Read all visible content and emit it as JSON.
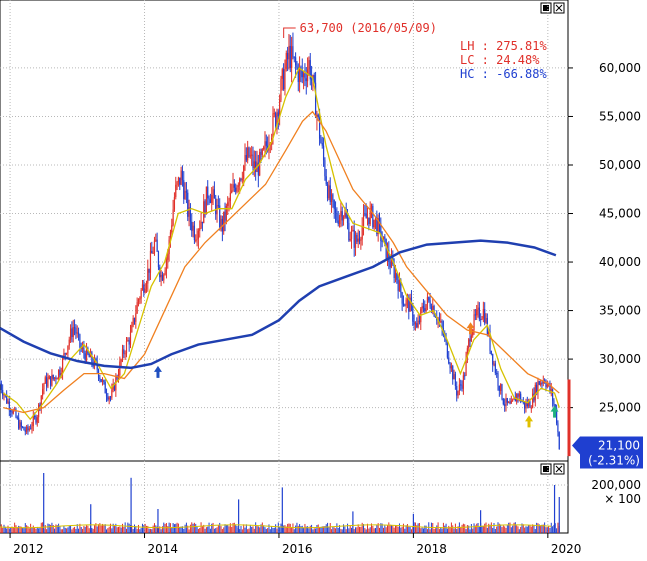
{
  "chart_data": [
    {
      "type": "candlestick",
      "panel": "price",
      "x_tick_labels": [
        "2012",
        "2014",
        "2016",
        "2018",
        "2020"
      ],
      "x_ticks": [
        2012.0,
        2014.0,
        2016.0,
        2018.0,
        2020.0
      ],
      "xlim": [
        2011.85,
        2020.3
      ],
      "ylim": [
        19500,
        67000
      ],
      "y_ticks": [
        25000,
        30000,
        35000,
        40000,
        45000,
        50000,
        55000,
        60000
      ],
      "y_tick_labels": [
        "25,000",
        "30,000",
        "35,000",
        "40,000",
        "45,000",
        "50,000",
        "55,000",
        "60,000"
      ],
      "grid": true,
      "price_path": [
        [
          2011.85,
          27500
        ],
        [
          2011.95,
          25800
        ],
        [
          2012.05,
          24500
        ],
        [
          2012.15,
          23000
        ],
        [
          2012.25,
          22500
        ],
        [
          2012.4,
          24200
        ],
        [
          2012.5,
          27500
        ],
        [
          2012.65,
          28000
        ],
        [
          2012.75,
          29000
        ],
        [
          2012.85,
          31500
        ],
        [
          2012.95,
          33500
        ],
        [
          2013.05,
          31000
        ],
        [
          2013.2,
          30000
        ],
        [
          2013.3,
          29000
        ],
        [
          2013.4,
          27000
        ],
        [
          2013.5,
          26000
        ],
        [
          2013.6,
          28500
        ],
        [
          2013.7,
          31000
        ],
        [
          2013.8,
          32500
        ],
        [
          2013.9,
          36000
        ],
        [
          2014.05,
          39000
        ],
        [
          2014.15,
          42000
        ],
        [
          2014.25,
          38500
        ],
        [
          2014.35,
          41000
        ],
        [
          2014.45,
          47000
        ],
        [
          2014.55,
          49000
        ],
        [
          2014.65,
          45000
        ],
        [
          2014.75,
          43000
        ],
        [
          2014.85,
          44500
        ],
        [
          2014.95,
          47500
        ],
        [
          2015.05,
          46000
        ],
        [
          2015.15,
          43500
        ],
        [
          2015.25,
          46000
        ],
        [
          2015.35,
          48000
        ],
        [
          2015.45,
          49500
        ],
        [
          2015.55,
          51000
        ],
        [
          2015.65,
          49500
        ],
        [
          2015.75,
          50500
        ],
        [
          2015.85,
          53000
        ],
        [
          2015.95,
          55000
        ],
        [
          2016.05,
          58500
        ],
        [
          2016.15,
          61500
        ],
        [
          2016.25,
          60000
        ],
        [
          2016.35,
          59000
        ],
        [
          2016.45,
          60500
        ],
        [
          2016.55,
          56000
        ],
        [
          2016.65,
          51000
        ],
        [
          2016.75,
          46500
        ],
        [
          2016.85,
          44500
        ],
        [
          2016.95,
          45500
        ],
        [
          2017.05,
          43000
        ],
        [
          2017.15,
          42000
        ],
        [
          2017.25,
          44000
        ],
        [
          2017.35,
          45000
        ],
        [
          2017.45,
          44000
        ],
        [
          2017.55,
          42000
        ],
        [
          2017.65,
          40000
        ],
        [
          2017.75,
          38500
        ],
        [
          2017.85,
          36000
        ],
        [
          2017.95,
          35500
        ],
        [
          2018.05,
          33000
        ],
        [
          2018.15,
          35500
        ],
        [
          2018.25,
          36000
        ],
        [
          2018.35,
          34500
        ],
        [
          2018.45,
          32500
        ],
        [
          2018.55,
          29500
        ],
        [
          2018.65,
          26500
        ],
        [
          2018.75,
          28000
        ],
        [
          2018.85,
          33000
        ],
        [
          2018.95,
          34500
        ],
        [
          2019.05,
          35000
        ],
        [
          2019.15,
          31000
        ],
        [
          2019.25,
          28000
        ],
        [
          2019.35,
          25500
        ],
        [
          2019.45,
          25000
        ],
        [
          2019.55,
          26500
        ],
        [
          2019.65,
          25200
        ],
        [
          2019.75,
          25500
        ],
        [
          2019.85,
          27500
        ],
        [
          2019.95,
          28000
        ],
        [
          2020.05,
          26500
        ],
        [
          2020.12,
          24500
        ],
        [
          2020.17,
          21100
        ]
      ],
      "moving_averages": [
        {
          "color": "#d6c200",
          "values": [
            [
              2011.9,
              26500
            ],
            [
              2012.1,
              25500
            ],
            [
              2012.3,
              23800
            ],
            [
              2012.5,
              25500
            ],
            [
              2012.7,
              27500
            ],
            [
              2012.9,
              30000
            ],
            [
              2013.1,
              31500
            ],
            [
              2013.3,
              29500
            ],
            [
              2013.5,
              27000
            ],
            [
              2013.7,
              28500
            ],
            [
              2013.9,
              33000
            ],
            [
              2014.1,
              37500
            ],
            [
              2014.3,
              40000
            ],
            [
              2014.5,
              45000
            ],
            [
              2014.7,
              45500
            ],
            [
              2014.9,
              45000
            ],
            [
              2015.1,
              45500
            ],
            [
              2015.3,
              45500
            ],
            [
              2015.5,
              48500
            ],
            [
              2015.7,
              50000
            ],
            [
              2015.9,
              52500
            ],
            [
              2016.1,
              57000
            ],
            [
              2016.3,
              60000
            ],
            [
              2016.5,
              59000
            ],
            [
              2016.7,
              52000
            ],
            [
              2016.9,
              46500
            ],
            [
              2017.1,
              44000
            ],
            [
              2017.3,
              43500
            ],
            [
              2017.5,
              43000
            ],
            [
              2017.7,
              40000
            ],
            [
              2017.9,
              36500
            ],
            [
              2018.1,
              34500
            ],
            [
              2018.3,
              35000
            ],
            [
              2018.5,
              32000
            ],
            [
              2018.7,
              28500
            ],
            [
              2018.9,
              32000
            ],
            [
              2019.1,
              33500
            ],
            [
              2019.3,
              29000
            ],
            [
              2019.5,
              26000
            ],
            [
              2019.7,
              25500
            ],
            [
              2019.9,
              27000
            ],
            [
              2020.1,
              26500
            ],
            [
              2020.17,
              25000
            ]
          ]
        },
        {
          "color": "#f08020",
          "values": [
            [
              2011.9,
              25000
            ],
            [
              2012.2,
              24500
            ],
            [
              2012.5,
              25000
            ],
            [
              2012.8,
              26800
            ],
            [
              2013.1,
              28500
            ],
            [
              2013.4,
              28500
            ],
            [
              2013.7,
              28000
            ],
            [
              2014.0,
              30500
            ],
            [
              2014.3,
              35000
            ],
            [
              2014.6,
              39500
            ],
            [
              2014.9,
              42000
            ],
            [
              2015.2,
              44000
            ],
            [
              2015.5,
              46000
            ],
            [
              2015.8,
              48000
            ],
            [
              2016.1,
              51500
            ],
            [
              2016.35,
              54500
            ],
            [
              2016.5,
              55500
            ],
            [
              2016.7,
              53500
            ],
            [
              2016.9,
              50500
            ],
            [
              2017.1,
              47500
            ],
            [
              2017.4,
              45000
            ],
            [
              2017.7,
              42000
            ],
            [
              2017.9,
              39500
            ],
            [
              2018.2,
              37000
            ],
            [
              2018.5,
              34500
            ],
            [
              2018.8,
              33000
            ],
            [
              2019.1,
              32500
            ],
            [
              2019.4,
              30500
            ],
            [
              2019.7,
              28500
            ],
            [
              2020.0,
              27500
            ],
            [
              2020.17,
              26500
            ]
          ]
        },
        {
          "color": "#1f3fb0",
          "values": [
            [
              2011.85,
              33200
            ],
            [
              2012.2,
              31800
            ],
            [
              2012.6,
              30600
            ],
            [
              2013.0,
              29800
            ],
            [
              2013.4,
              29300
            ],
            [
              2013.8,
              29100
            ],
            [
              2014.1,
              29500
            ],
            [
              2014.4,
              30500
            ],
            [
              2014.8,
              31500
            ],
            [
              2015.2,
              32000
            ],
            [
              2015.6,
              32500
            ],
            [
              2016.0,
              34000
            ],
            [
              2016.3,
              36000
            ],
            [
              2016.6,
              37500
            ],
            [
              2017.0,
              38500
            ],
            [
              2017.4,
              39500
            ],
            [
              2017.8,
              41000
            ],
            [
              2018.2,
              41800
            ],
            [
              2018.6,
              42000
            ],
            [
              2019.0,
              42200
            ],
            [
              2019.4,
              42000
            ],
            [
              2019.8,
              41500
            ],
            [
              2020.12,
              40700
            ]
          ]
        }
      ],
      "annotations": {
        "high_label": "63,700 (2016/05/09)",
        "high_point": [
          2016.07,
          63700
        ],
        "lh": "LH : 275.81%",
        "lc": "LC :  24.48%",
        "hc": "HC : -66.88%",
        "last_price": "21,100",
        "last_change": "(-2.31%)",
        "last_value": 21100,
        "colors": {
          "lh": "#e0302a",
          "lc": "#e0302a",
          "hc": "#2040d0",
          "price_label_bg": "#1f3fd0"
        }
      },
      "arrows": [
        {
          "x": 2014.2,
          "y": 29300,
          "color": "#1f4fc0"
        },
        {
          "x": 2018.85,
          "y": 33800,
          "color": "#f08020"
        },
        {
          "x": 2019.72,
          "y": 24200,
          "color": "#e0c000"
        },
        {
          "x": 2020.1,
          "y": 25200,
          "color": "#20b080"
        }
      ]
    },
    {
      "type": "bar",
      "panel": "volume",
      "y_tick_labels": [
        "200,000",
        "× 100"
      ],
      "y_ticks": [
        200000
      ],
      "ylim": [
        0,
        300000
      ],
      "spikes": [
        [
          2012.5,
          250000
        ],
        [
          2013.2,
          120000
        ],
        [
          2013.8,
          230000
        ],
        [
          2014.2,
          100000
        ],
        [
          2015.4,
          140000
        ],
        [
          2016.05,
          190000
        ],
        [
          2017.1,
          90000
        ],
        [
          2018.0,
          80000
        ],
        [
          2019.0,
          95000
        ],
        [
          2020.1,
          200000
        ],
        [
          2020.17,
          150000
        ]
      ]
    }
  ]
}
